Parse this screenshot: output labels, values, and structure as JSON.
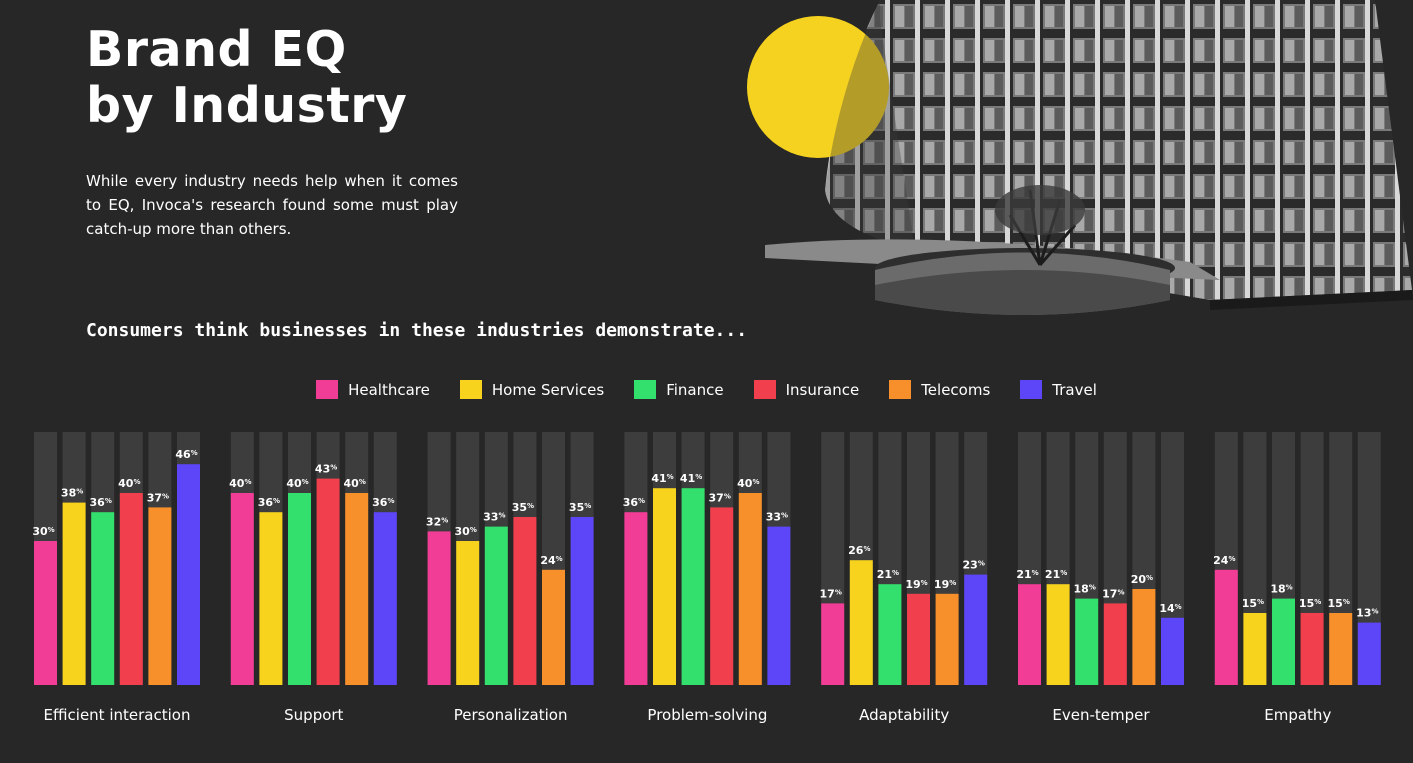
{
  "header": {
    "title_line1": "Brand EQ",
    "title_line2": "by Industry",
    "intro": "While every industry needs help when it comes to EQ, Invoca's research found some must play catch-up more than others.",
    "subtitle": "Consumers think businesses in these industries demonstrate..."
  },
  "colors": {
    "background": "#272727",
    "bar_track": "#3d3d3d",
    "sun": "#f5d21f"
  },
  "chart_data": {
    "type": "bar",
    "ylim": [
      0,
      100
    ],
    "value_suffix": "%",
    "categories": [
      "Efficient interaction",
      "Support",
      "Personalization",
      "Problem-solving",
      "Adaptability",
      "Even-temper",
      "Empathy"
    ],
    "series": [
      {
        "name": "Healthcare",
        "color": "#f23d97",
        "values": [
          30,
          40,
          32,
          36,
          17,
          21,
          24
        ]
      },
      {
        "name": "Home Services",
        "color": "#f7d31e",
        "values": [
          38,
          36,
          30,
          41,
          26,
          21,
          15
        ]
      },
      {
        "name": "Finance",
        "color": "#34e06d",
        "values": [
          36,
          40,
          33,
          41,
          21,
          18,
          18
        ]
      },
      {
        "name": "Insurance",
        "color": "#f13f4d",
        "values": [
          40,
          43,
          35,
          37,
          19,
          17,
          15
        ]
      },
      {
        "name": "Telecoms",
        "color": "#f7902a",
        "values": [
          37,
          40,
          24,
          40,
          19,
          20,
          15
        ]
      },
      {
        "name": "Travel",
        "color": "#5d45f8",
        "values": [
          46,
          36,
          35,
          33,
          23,
          14,
          13
        ]
      }
    ]
  }
}
